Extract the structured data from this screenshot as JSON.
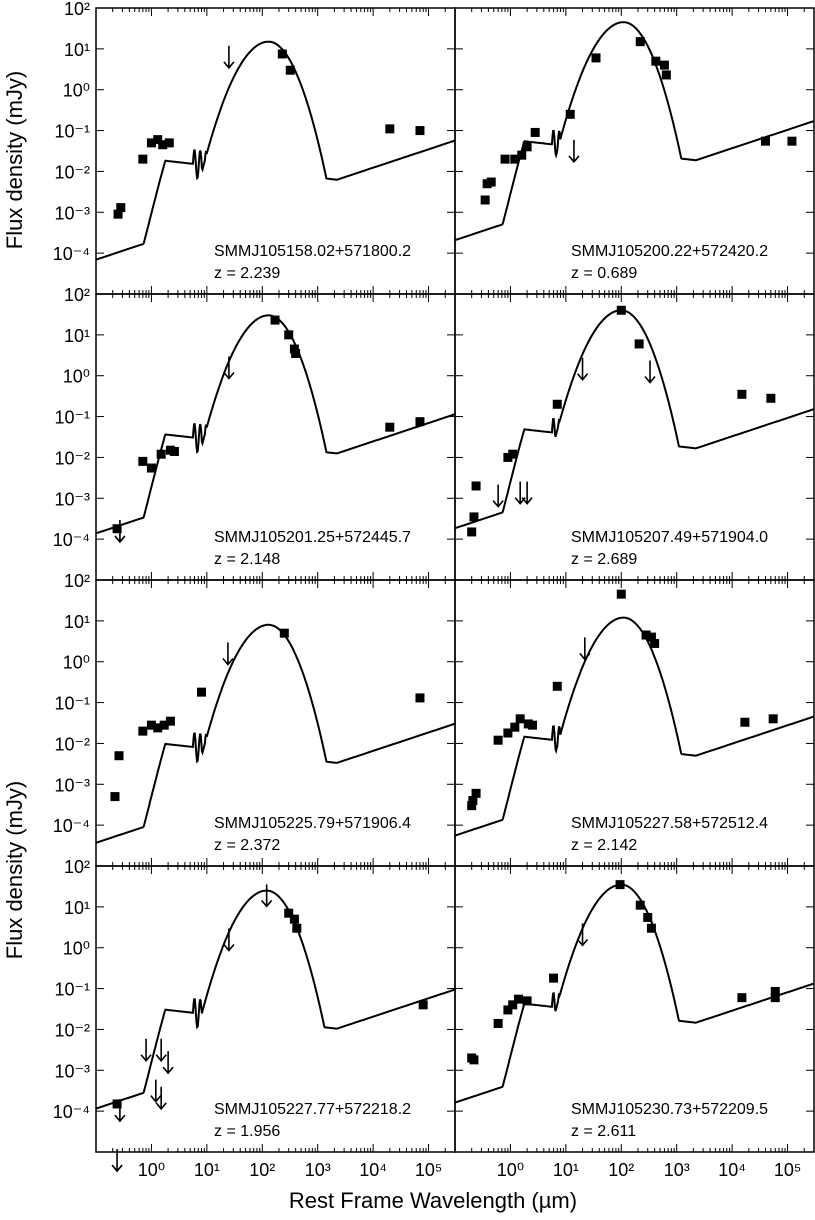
{
  "figure": {
    "ylabel": "Flux density (mJy)",
    "xlabel": "Rest Frame Wavelength (µm)",
    "x_axis_scale": "log",
    "y_axis_scale": "log",
    "x_tick_labels": [
      "10⁰",
      "10¹",
      "10²",
      "10³",
      "10⁴",
      "10⁵"
    ],
    "y_tick_labels": [
      "10⁻⁴",
      "10⁻³",
      "10⁻²",
      "10⁻¹",
      "10⁰",
      "10¹",
      "10²"
    ],
    "colors": {
      "ink": "#000000",
      "background": "#ffffff"
    }
  },
  "chart_data": [
    {
      "type": "scatter",
      "name": "SMMJ105158.02+571800.2",
      "redshift_label": "z = 2.239",
      "xlim": [
        0.1,
        300000
      ],
      "ylim": [
        1e-05,
        100
      ],
      "model_peak": {
        "wavelength": 130,
        "flux": 15
      },
      "points": [
        [
          0.25,
          0.0009
        ],
        [
          0.28,
          0.0013
        ],
        [
          0.7,
          0.02
        ],
        [
          1.0,
          0.05
        ],
        [
          1.3,
          0.06
        ],
        [
          1.6,
          0.045
        ],
        [
          2.1,
          0.05
        ],
        [
          230,
          7.5
        ],
        [
          320,
          3.0
        ],
        [
          20000,
          0.11
        ],
        [
          70000,
          0.1
        ]
      ],
      "upper_limits": [
        [
          25,
          6
        ]
      ]
    },
    {
      "type": "scatter",
      "name": "SMMJ105200.22+572420.2",
      "redshift_label": "z = 0.689",
      "xlim": [
        0.1,
        300000
      ],
      "ylim": [
        1e-05,
        100
      ],
      "model_peak": {
        "wavelength": 110,
        "flux": 45
      },
      "points": [
        [
          0.35,
          0.002
        ],
        [
          0.38,
          0.005
        ],
        [
          0.45,
          0.0055
        ],
        [
          0.8,
          0.02
        ],
        [
          1.2,
          0.02
        ],
        [
          1.6,
          0.025
        ],
        [
          2.0,
          0.04
        ],
        [
          2.8,
          0.09
        ],
        [
          12,
          0.25
        ],
        [
          35,
          6.0
        ],
        [
          220,
          15
        ],
        [
          420,
          5
        ],
        [
          600,
          4
        ],
        [
          650,
          2.3
        ],
        [
          40000,
          0.055
        ],
        [
          120000,
          0.055
        ]
      ],
      "upper_limits": [
        [
          14,
          0.03
        ]
      ]
    },
    {
      "type": "scatter",
      "name": "SMMJ105201.25+572445.7",
      "redshift_label": "z = 2.148",
      "xlim": [
        0.1,
        300000
      ],
      "ylim": [
        1e-05,
        100
      ],
      "model_peak": {
        "wavelength": 130,
        "flux": 30
      },
      "points": [
        [
          0.24,
          0.00018
        ],
        [
          0.7,
          0.008
        ],
        [
          1.0,
          0.0055
        ],
        [
          1.5,
          0.012
        ],
        [
          2.2,
          0.015
        ],
        [
          2.6,
          0.014
        ],
        [
          170,
          23
        ],
        [
          300,
          10
        ],
        [
          380,
          4.5
        ],
        [
          400,
          3.5
        ],
        [
          20000,
          0.055
        ],
        [
          70000,
          0.075
        ]
      ],
      "upper_limits": [
        [
          0.27,
          0.00015
        ],
        [
          25,
          1.5
        ]
      ]
    },
    {
      "type": "scatter",
      "name": "SMMJ105207.49+571904.0",
      "redshift_label": "z = 2.689",
      "xlim": [
        0.1,
        300000
      ],
      "ylim": [
        1e-05,
        100
      ],
      "model_peak": {
        "wavelength": 100,
        "flux": 40
      },
      "points": [
        [
          0.2,
          0.00015
        ],
        [
          0.22,
          0.00035
        ],
        [
          0.24,
          0.002
        ],
        [
          0.9,
          0.01
        ],
        [
          1.1,
          0.012
        ],
        [
          7.0,
          0.2
        ],
        [
          100,
          40
        ],
        [
          210,
          6
        ],
        [
          15000,
          0.35
        ],
        [
          50000,
          0.28
        ]
      ],
      "upper_limits": [
        [
          0.6,
          0.0011
        ],
        [
          1.5,
          0.0013
        ],
        [
          2.0,
          0.0013
        ],
        [
          20,
          1.4
        ],
        [
          330,
          1.2
        ]
      ]
    },
    {
      "type": "scatter",
      "name": "SMMJ105225.79+571906.4",
      "redshift_label": "z = 2.372",
      "xlim": [
        0.1,
        300000
      ],
      "ylim": [
        1e-05,
        100
      ],
      "model_peak": {
        "wavelength": 130,
        "flux": 8
      },
      "points": [
        [
          0.22,
          0.0005
        ],
        [
          0.26,
          0.005
        ],
        [
          0.7,
          0.02
        ],
        [
          1.0,
          0.028
        ],
        [
          1.3,
          0.024
        ],
        [
          1.7,
          0.028
        ],
        [
          2.2,
          0.035
        ],
        [
          8,
          0.18
        ],
        [
          250,
          5
        ],
        [
          70000,
          0.13
        ]
      ],
      "upper_limits": [
        [
          24,
          1.5
        ]
      ]
    },
    {
      "type": "scatter",
      "name": "SMMJ105227.58+572512.4",
      "redshift_label": "z = 2.142",
      "xlim": [
        0.1,
        300000
      ],
      "ylim": [
        1e-05,
        100
      ],
      "model_peak": {
        "wavelength": 110,
        "flux": 12
      },
      "points": [
        [
          0.2,
          0.0003
        ],
        [
          0.21,
          0.0004
        ],
        [
          0.24,
          0.0006
        ],
        [
          0.6,
          0.012
        ],
        [
          0.9,
          0.018
        ],
        [
          1.2,
          0.025
        ],
        [
          1.5,
          0.04
        ],
        [
          2.1,
          0.03
        ],
        [
          2.5,
          0.028
        ],
        [
          7,
          0.25
        ],
        [
          100,
          45
        ],
        [
          280,
          4.5
        ],
        [
          350,
          4
        ],
        [
          400,
          2.8
        ],
        [
          17000,
          0.033
        ],
        [
          55000,
          0.04
        ]
      ],
      "upper_limits": [
        [
          22,
          2.0
        ]
      ]
    },
    {
      "type": "scatter",
      "name": "SMMJ105227.77+572218.2",
      "redshift_label": "z = 1.956",
      "xlim": [
        0.1,
        300000
      ],
      "ylim": [
        1e-05,
        100
      ],
      "model_peak": {
        "wavelength": 120,
        "flux": 25
      },
      "points": [
        [
          0.24,
          0.00015
        ],
        [
          300,
          7
        ],
        [
          380,
          5
        ],
        [
          420,
          3
        ],
        [
          80000,
          0.04
        ]
      ],
      "upper_limits": [
        [
          0.27,
          0.0001
        ],
        [
          0.24,
          6e-06
        ],
        [
          0.8,
          0.003
        ],
        [
          1.5,
          0.003
        ],
        [
          2.0,
          0.0015
        ],
        [
          1.2,
          0.0003
        ],
        [
          1.5,
          0.0002
        ],
        [
          25,
          1.5
        ],
        [
          120,
          18
        ]
      ]
    },
    {
      "type": "scatter",
      "name": "SMMJ105230.73+572209.5",
      "redshift_label": "z = 2.611",
      "xlim": [
        0.1,
        300000
      ],
      "ylim": [
        1e-05,
        100
      ],
      "model_peak": {
        "wavelength": 100,
        "flux": 35
      },
      "points": [
        [
          0.2,
          0.002
        ],
        [
          0.22,
          0.0018
        ],
        [
          0.6,
          0.014
        ],
        [
          0.9,
          0.03
        ],
        [
          1.1,
          0.04
        ],
        [
          1.4,
          0.055
        ],
        [
          2.0,
          0.05
        ],
        [
          6,
          0.18
        ],
        [
          95,
          35
        ],
        [
          220,
          11
        ],
        [
          300,
          5.5
        ],
        [
          350,
          3.0
        ],
        [
          15000,
          0.06
        ],
        [
          60000,
          0.06
        ],
        [
          60000,
          0.085
        ]
      ],
      "upper_limits": [
        [
          20,
          2.0
        ]
      ]
    }
  ]
}
